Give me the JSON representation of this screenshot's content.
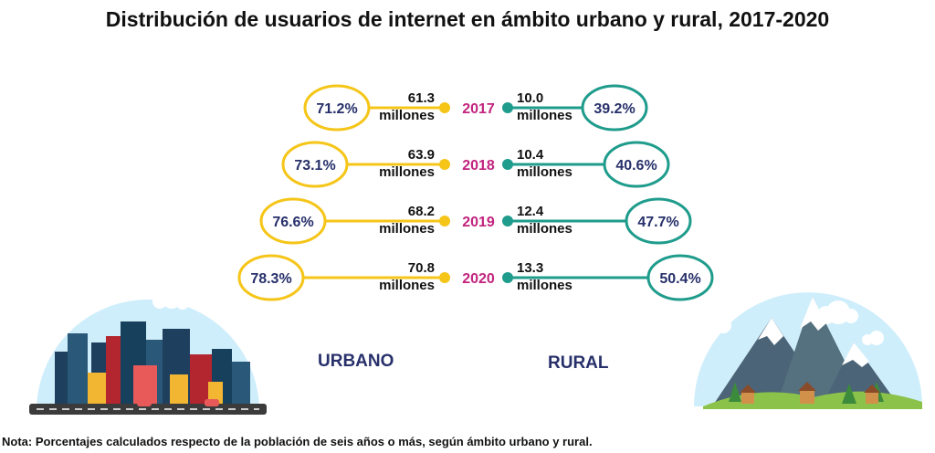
{
  "chart_data": {
    "type": "table",
    "title": "Distribución de usuarios de internet en ámbito urbano y rural, 2017-2020",
    "unit_label": "millones",
    "series_labels": {
      "urban": "URBANO",
      "rural": "RURAL"
    },
    "rows": [
      {
        "year": "2017",
        "urban_value": "61.3",
        "urban_pct": "71.2%",
        "urban_pct_value": 71.2,
        "rural_value": "10.0",
        "rural_pct": "39.2%",
        "rural_pct_value": 39.2
      },
      {
        "year": "2018",
        "urban_value": "63.9",
        "urban_pct": "73.1%",
        "urban_pct_value": 73.1,
        "rural_value": "10.4",
        "rural_pct": "40.6%",
        "rural_pct_value": 40.6
      },
      {
        "year": "2019",
        "urban_value": "68.2",
        "urban_pct": "76.6%",
        "urban_pct_value": 76.6,
        "rural_value": "12.4",
        "rural_pct": "47.7%",
        "rural_pct_value": 47.7
      },
      {
        "year": "2020",
        "urban_value": "70.8",
        "urban_pct": "78.3%",
        "urban_pct_value": 78.3,
        "rural_value": "13.3",
        "rural_pct": "50.4%",
        "rural_pct_value": 50.4
      }
    ],
    "note": "Nota: Porcentajes calculados respecto de la población de seis años o más, según ámbito urbano y rural."
  },
  "colors": {
    "urban": "#f5c518",
    "rural": "#1f9c8c",
    "year": "#c2237e",
    "pct_text": "#27306a",
    "text": "#111111"
  }
}
